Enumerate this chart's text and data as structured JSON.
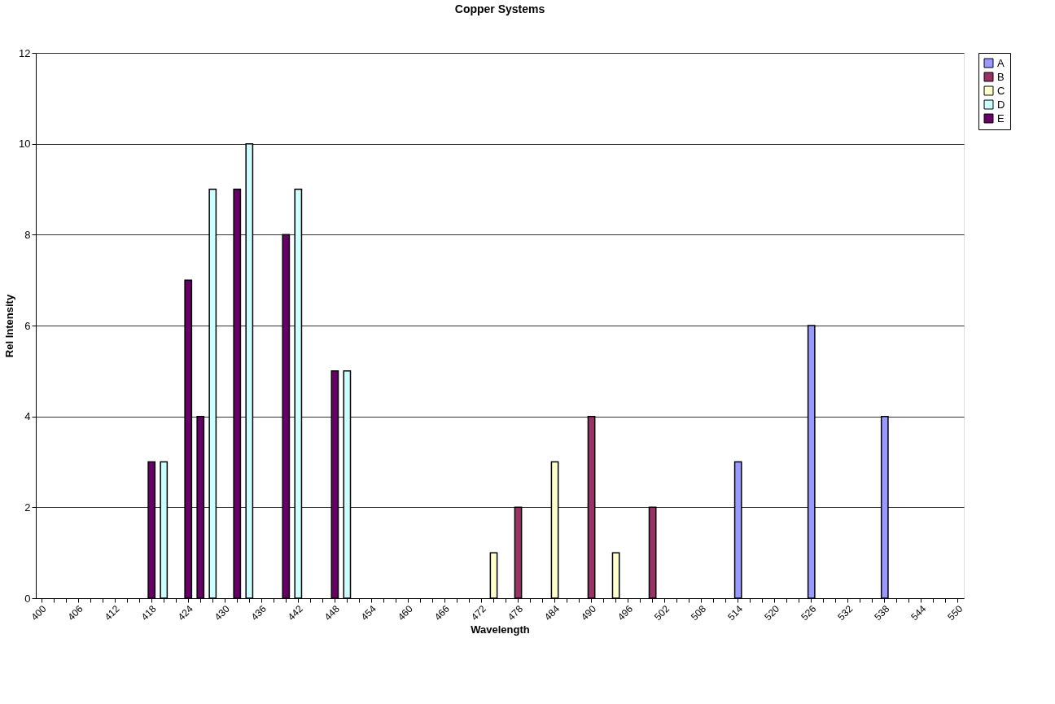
{
  "chart_data": {
    "type": "bar",
    "title": "Copper Systems",
    "xlabel": "Wavelength",
    "ylabel": "Rel Intensity",
    "categories": [
      "400",
      null,
      null,
      "406",
      null,
      null,
      "412",
      null,
      null,
      "418",
      null,
      null,
      "424",
      null,
      null,
      "430",
      null,
      null,
      "436",
      null,
      null,
      "442",
      null,
      null,
      "448",
      null,
      null,
      "454",
      null,
      null,
      "460",
      null,
      null,
      "466",
      null,
      null,
      "472",
      null,
      null,
      "478",
      null,
      null,
      "484",
      null,
      null,
      "490",
      null,
      null,
      "496",
      null,
      null,
      "502",
      null,
      null,
      "508",
      null,
      null,
      "514",
      null,
      null,
      "520",
      null,
      null,
      "526",
      null,
      null,
      "532",
      null,
      null,
      "538",
      null,
      null,
      "544",
      null,
      null,
      "550"
    ],
    "series": [
      {
        "name": "A",
        "color": "#9999ff",
        "values": [
          null,
          null,
          null,
          null,
          null,
          null,
          null,
          null,
          null,
          null,
          null,
          null,
          null,
          null,
          null,
          null,
          null,
          null,
          null,
          null,
          null,
          null,
          null,
          null,
          null,
          null,
          null,
          null,
          null,
          null,
          null,
          null,
          null,
          null,
          null,
          null,
          null,
          null,
          null,
          null,
          null,
          null,
          null,
          null,
          null,
          null,
          null,
          null,
          null,
          null,
          null,
          null,
          null,
          null,
          null,
          null,
          null,
          3,
          null,
          null,
          null,
          null,
          null,
          6,
          null,
          null,
          null,
          null,
          null,
          4,
          null,
          null,
          null,
          null,
          null,
          null
        ]
      },
      {
        "name": "B",
        "color": "#993366",
        "values": [
          null,
          null,
          null,
          null,
          null,
          null,
          null,
          null,
          null,
          null,
          null,
          null,
          null,
          null,
          null,
          null,
          null,
          null,
          null,
          null,
          null,
          null,
          null,
          null,
          null,
          null,
          null,
          null,
          null,
          null,
          null,
          null,
          null,
          null,
          null,
          null,
          null,
          null,
          null,
          2,
          null,
          null,
          null,
          null,
          null,
          4,
          null,
          null,
          null,
          null,
          2,
          null,
          null,
          null,
          null,
          null,
          null,
          null,
          null,
          null,
          null,
          null,
          null,
          null,
          null,
          null,
          null,
          null,
          null,
          null,
          null,
          null,
          null,
          null,
          null,
          null
        ]
      },
      {
        "name": "C",
        "color": "#ffffcc",
        "values": [
          null,
          null,
          null,
          null,
          null,
          null,
          null,
          null,
          null,
          null,
          null,
          null,
          null,
          null,
          null,
          null,
          null,
          null,
          null,
          null,
          null,
          null,
          null,
          null,
          null,
          null,
          null,
          null,
          null,
          null,
          null,
          null,
          null,
          null,
          null,
          null,
          null,
          1,
          null,
          null,
          null,
          null,
          3,
          null,
          null,
          null,
          null,
          1,
          null,
          null,
          null,
          null,
          null,
          null,
          null,
          null,
          null,
          null,
          null,
          null,
          null,
          null,
          null,
          null,
          null,
          null,
          null,
          null,
          null,
          null,
          null,
          null,
          null,
          null,
          null,
          null
        ]
      },
      {
        "name": "D",
        "color": "#ccffff",
        "values": [
          null,
          null,
          null,
          null,
          null,
          null,
          null,
          null,
          null,
          null,
          3,
          null,
          null,
          null,
          9,
          null,
          null,
          10,
          null,
          null,
          null,
          9,
          null,
          null,
          null,
          5,
          null,
          null,
          null,
          null,
          null,
          null,
          null,
          null,
          null,
          null,
          null,
          null,
          null,
          null,
          null,
          null,
          null,
          null,
          null,
          null,
          null,
          null,
          null,
          null,
          null,
          null,
          null,
          null,
          null,
          null,
          null,
          null,
          null,
          null,
          null,
          null,
          null,
          null,
          null,
          null,
          null,
          null,
          null,
          null,
          null,
          null,
          null,
          null,
          null,
          null
        ]
      },
      {
        "name": "E",
        "color": "#660066",
        "values": [
          null,
          null,
          null,
          null,
          null,
          null,
          null,
          null,
          null,
          3,
          null,
          null,
          7,
          4,
          null,
          null,
          9,
          null,
          null,
          null,
          8,
          null,
          null,
          null,
          5,
          null,
          null,
          null,
          null,
          null,
          null,
          null,
          null,
          null,
          null,
          null,
          null,
          null,
          null,
          null,
          null,
          null,
          null,
          null,
          null,
          null,
          null,
          null,
          null,
          null,
          null,
          null,
          null,
          null,
          null,
          null,
          null,
          null,
          null,
          null,
          null,
          null,
          null,
          null,
          null,
          null,
          null,
          null,
          null,
          null,
          null,
          null,
          null,
          null,
          null,
          null
        ]
      }
    ],
    "ylim": [
      0,
      12
    ],
    "yticks": [
      0,
      2,
      4,
      6,
      8,
      10,
      12
    ],
    "grid": "y",
    "legend": "right"
  }
}
